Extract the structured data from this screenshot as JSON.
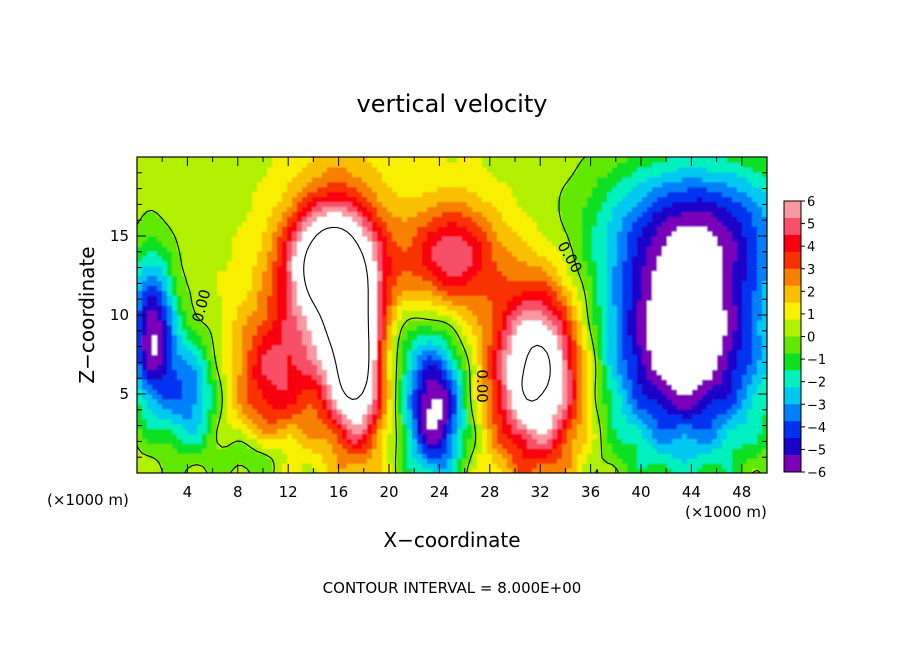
{
  "chart_data": {
    "type": "heatmap",
    "title": "vertical velocity",
    "xlabel": "X−coordinate",
    "ylabel": "Z−coordinate",
    "x_unit_label": "(×1000 m)",
    "y_unit_label": "(×1000 m)",
    "footer": "CONTOUR INTERVAL = 8.000E+00",
    "xlim": [
      0,
      50
    ],
    "ylim": [
      0,
      20
    ],
    "x_ticks": [
      4,
      8,
      12,
      16,
      20,
      24,
      28,
      32,
      36,
      40,
      44,
      48
    ],
    "x_tick_labels": [
      "4",
      "8",
      "12",
      "16",
      "20",
      "24",
      "28",
      "32",
      "36",
      "40",
      "44",
      "48"
    ],
    "y_ticks": [
      5,
      10,
      15
    ],
    "y_tick_labels": [
      "5",
      "10",
      "15"
    ],
    "colorbar": {
      "range": [
        -6,
        6
      ],
      "ticks": [
        6,
        5,
        4,
        3,
        2,
        1,
        0,
        -1,
        -2,
        -3,
        -4,
        -5,
        -6
      ],
      "tick_labels": [
        "6",
        "5",
        "4",
        "3",
        "2",
        "1",
        "0",
        "−1",
        "−2",
        "−3",
        "−4",
        "−5",
        "−6"
      ],
      "colors": [
        "#7a00b8",
        "#1a00c8",
        "#0030f0",
        "#0080f8",
        "#00c8f0",
        "#00f0c0",
        "#10e020",
        "#60e800",
        "#b0f000",
        "#f8f000",
        "#f8c000",
        "#f88000",
        "#f83000",
        "#f80010",
        "#f85068",
        "#f898a0"
      ],
      "over_color": "#ffffff",
      "under_color": "#ffffff"
    },
    "contour_labels": [
      {
        "text": "0.00",
        "x": 5.5,
        "y": 10.5,
        "angle": -75
      },
      {
        "text": "0.00",
        "x": 34,
        "y": 13.5,
        "angle": 60
      },
      {
        "text": "0.00",
        "x": 27,
        "y": 5.5,
        "angle": 90
      }
    ],
    "features": [
      {
        "name": "updraft",
        "x": 16.0,
        "y": 11.0,
        "sx": 2.6,
        "sy": 4.8,
        "amp": 6.6
      },
      {
        "name": "updraft",
        "x": 15.0,
        "y": 13.5,
        "sx": 2.5,
        "sy": 2.2,
        "amp": 5.0
      },
      {
        "name": "updraft",
        "x": 25.0,
        "y": 13.8,
        "sx": 2.6,
        "sy": 2.4,
        "amp": 4.5
      },
      {
        "name": "updraft",
        "x": 17.5,
        "y": 6.5,
        "sx": 1.4,
        "sy": 3.4,
        "amp": 6.2
      },
      {
        "name": "updraft",
        "x": 31.8,
        "y": 6.3,
        "sx": 2.5,
        "sy": 3.9,
        "amp": 8.5
      },
      {
        "name": "updraft",
        "x": 10.5,
        "y": 6.2,
        "sx": 2.0,
        "sy": 3.2,
        "amp": 3.6
      },
      {
        "name": "downdraft",
        "x": 23.6,
        "y": 4.0,
        "sx": 1.7,
        "sy": 3.2,
        "amp": -7.0
      },
      {
        "name": "downdraft",
        "x": 43.5,
        "y": 8.5,
        "sx": 4.6,
        "sy": 5.2,
        "amp": -8.0
      },
      {
        "name": "downdraft",
        "x": 45.0,
        "y": 16.0,
        "sx": 6.0,
        "sy": 3.0,
        "amp": -3.6
      },
      {
        "name": "downdraft",
        "x": 1.2,
        "y": 8.8,
        "sx": 1.3,
        "sy": 3.5,
        "amp": -6.5
      },
      {
        "name": "downdraft",
        "x": 4.2,
        "y": 5.0,
        "sx": 1.5,
        "sy": 2.6,
        "amp": -4.0
      },
      {
        "name": "downdraft",
        "x": 9.5,
        "y": 1.0,
        "sx": 2.0,
        "sy": 1.2,
        "amp": -1.8
      },
      {
        "name": "downdraft",
        "x": 20.5,
        "y": 8.2,
        "sx": 1.8,
        "sy": 2.0,
        "amp": -1.5
      }
    ]
  }
}
